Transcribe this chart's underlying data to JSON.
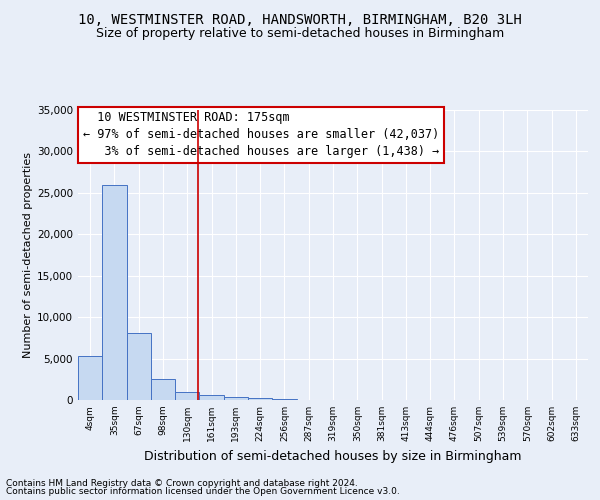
{
  "title": "10, WESTMINSTER ROAD, HANDSWORTH, BIRMINGHAM, B20 3LH",
  "subtitle": "Size of property relative to semi-detached houses in Birmingham",
  "xlabel": "Distribution of semi-detached houses by size in Birmingham",
  "ylabel": "Number of semi-detached properties",
  "footer1": "Contains HM Land Registry data © Crown copyright and database right 2024.",
  "footer2": "Contains public sector information licensed under the Open Government Licence v3.0.",
  "bin_labels": [
    "4sqm",
    "35sqm",
    "67sqm",
    "98sqm",
    "130sqm",
    "161sqm",
    "193sqm",
    "224sqm",
    "256sqm",
    "287sqm",
    "319sqm",
    "350sqm",
    "381sqm",
    "413sqm",
    "444sqm",
    "476sqm",
    "507sqm",
    "539sqm",
    "570sqm",
    "602sqm",
    "633sqm"
  ],
  "bar_values": [
    5300,
    26000,
    8100,
    2500,
    1000,
    600,
    400,
    300,
    100,
    50,
    20,
    10,
    5,
    3,
    2,
    1,
    1,
    0,
    0,
    0,
    0
  ],
  "bar_color": "#c6d9f1",
  "bar_edge_color": "#4472c4",
  "property_label": "10 WESTMINSTER ROAD: 175sqm",
  "pct_smaller": "97% of semi-detached houses are smaller (42,037)",
  "pct_larger": "3% of semi-detached houses are larger (1,438)",
  "vline_color": "#cc0000",
  "vline_position": 4.4375,
  "annotation_box_edge_color": "#cc0000",
  "ylim": [
    0,
    35000
  ],
  "yticks": [
    0,
    5000,
    10000,
    15000,
    20000,
    25000,
    30000,
    35000
  ],
  "bg_color": "#e8eef8",
  "grid_color": "#ffffff",
  "title_fontsize": 10,
  "subtitle_fontsize": 9,
  "annotation_fontsize": 8.5,
  "ylabel_fontsize": 8,
  "xlabel_fontsize": 9,
  "footer_fontsize": 6.5
}
